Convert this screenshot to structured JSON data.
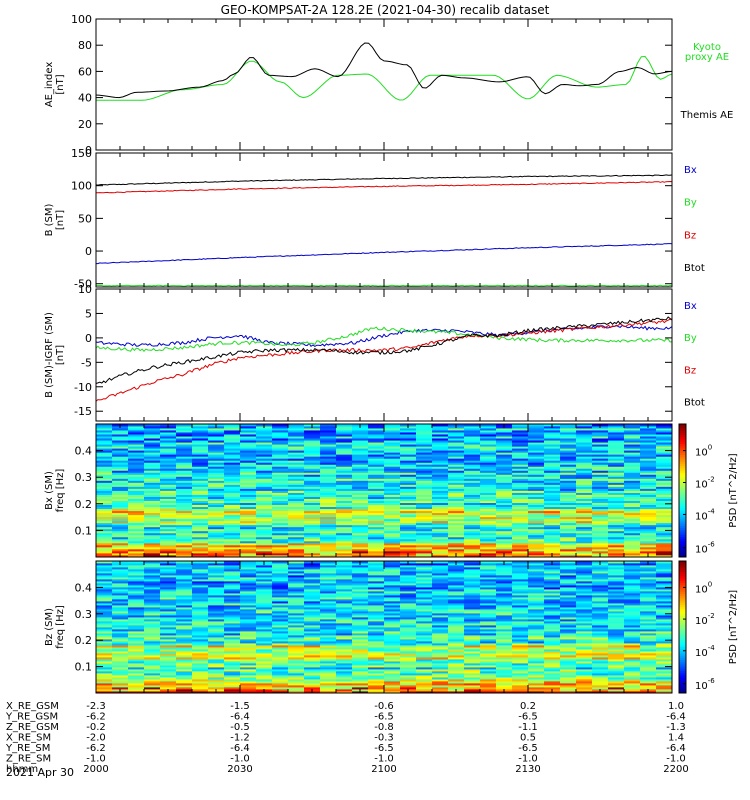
{
  "title": "GEO-KOMPSAT-2A 128.2E (2021-04-30) recalib dataset",
  "colors": {
    "black": "#000000",
    "red": "#e00000",
    "green": "#22dd22",
    "blue": "#0000cc"
  },
  "chart_data": [
    {
      "type": "line",
      "panel": "ae",
      "ylabel": [
        "AE_index",
        "[nT]"
      ],
      "ylim": [
        0,
        100
      ],
      "yticks": [
        0,
        20,
        40,
        60,
        80,
        100
      ],
      "legend": [
        {
          "lines": [
            "Kyoto",
            "proxy AE"
          ],
          "color": "#22dd22"
        },
        {
          "lines": [
            "Themis AE"
          ],
          "color": "#000000"
        }
      ],
      "series": [
        {
          "name": "Kyoto proxy AE",
          "color": "#22dd22",
          "x": [
            0,
            0.08,
            0.15,
            0.22,
            0.27,
            0.32,
            0.36,
            0.42,
            0.47,
            0.53,
            0.58,
            0.63,
            0.69,
            0.75,
            0.8,
            0.87,
            0.92,
            0.95,
            0.98,
            1.0
          ],
          "values": [
            38,
            38,
            46,
            50,
            68,
            52,
            40,
            57,
            58,
            38,
            57,
            57,
            57,
            39,
            57,
            48,
            50,
            72,
            54,
            58
          ]
        },
        {
          "name": "Themis AE",
          "color": "#000000",
          "x": [
            0,
            0.04,
            0.07,
            0.12,
            0.18,
            0.22,
            0.24,
            0.27,
            0.3,
            0.34,
            0.38,
            0.42,
            0.47,
            0.5,
            0.54,
            0.57,
            0.6,
            0.64,
            0.7,
            0.75,
            0.78,
            0.81,
            0.84,
            0.87,
            0.91,
            0.94,
            0.97,
            1.0
          ],
          "values": [
            42,
            40,
            44,
            45,
            48,
            53,
            58,
            71,
            57,
            56,
            62,
            56,
            82,
            68,
            65,
            47,
            57,
            55,
            52,
            56,
            43,
            50,
            49,
            50,
            60,
            63,
            58,
            60
          ]
        }
      ]
    },
    {
      "type": "line",
      "panel": "b_sm",
      "ylabel": [
        "B (SM)",
        "[nT]"
      ],
      "ylim": [
        -55,
        150
      ],
      "yticks": [
        -50,
        0,
        50,
        100,
        150
      ],
      "legend": [
        {
          "lines": [
            "Bx"
          ],
          "color": "#0000cc"
        },
        {
          "lines": [
            "By"
          ],
          "color": "#22dd22"
        },
        {
          "lines": [
            "Bz"
          ],
          "color": "#e00000"
        },
        {
          "lines": [
            "Btot"
          ],
          "color": "#000000"
        }
      ],
      "series": [
        {
          "name": "Btot",
          "color": "#000000",
          "x": [
            0,
            0.25,
            0.5,
            0.75,
            1.0
          ],
          "values": [
            101,
            107,
            111,
            114,
            116
          ]
        },
        {
          "name": "Bz",
          "color": "#e00000",
          "x": [
            0,
            0.25,
            0.5,
            0.75,
            1.0
          ],
          "values": [
            89,
            95,
            99,
            102,
            106
          ]
        },
        {
          "name": "Bx",
          "color": "#0000cc",
          "x": [
            0,
            0.25,
            0.5,
            0.75,
            1.0
          ],
          "values": [
            -19,
            -10,
            -2,
            5,
            11
          ]
        },
        {
          "name": "By",
          "color": "#22dd22",
          "x": [
            0,
            0.25,
            0.5,
            0.75,
            1.0
          ],
          "values": [
            -53,
            -53,
            -53,
            -53,
            -53
          ]
        }
      ]
    },
    {
      "type": "line",
      "panel": "db_sm",
      "ylabel": [
        "B (SM)-IGRF (SM)",
        "[nT]"
      ],
      "ylim": [
        -17,
        10
      ],
      "yticks": [
        -15,
        -10,
        -5,
        0,
        5,
        10
      ],
      "legend": [
        {
          "lines": [
            "Bx"
          ],
          "color": "#0000cc"
        },
        {
          "lines": [
            "By"
          ],
          "color": "#22dd22"
        },
        {
          "lines": [
            "Bz"
          ],
          "color": "#e00000"
        },
        {
          "lines": [
            "Btot"
          ],
          "color": "#000000"
        }
      ],
      "series": [
        {
          "name": "Bx",
          "color": "#0000cc",
          "x": [
            0,
            0.08,
            0.15,
            0.2,
            0.25,
            0.3,
            0.38,
            0.45,
            0.5,
            0.55,
            0.62,
            0.7,
            0.78,
            0.85,
            0.9,
            0.95,
            1.0
          ],
          "values": [
            -1,
            -1.5,
            -1,
            0,
            0.5,
            -1,
            -1.5,
            -1,
            0.5,
            1.5,
            1.5,
            0.5,
            1.5,
            2,
            2.5,
            2,
            2
          ]
        },
        {
          "name": "By",
          "color": "#22dd22",
          "x": [
            0,
            0.08,
            0.15,
            0.22,
            0.28,
            0.33,
            0.38,
            0.44,
            0.48,
            0.55,
            0.62,
            0.7,
            0.78,
            0.85,
            0.92,
            1.0
          ],
          "values": [
            -2,
            -2.5,
            -2,
            -1,
            -1,
            -1.5,
            -1,
            0.5,
            2,
            1.5,
            1,
            0,
            -0.5,
            -0.5,
            -0.5,
            -0.5
          ]
        },
        {
          "name": "Bz",
          "color": "#e00000",
          "x": [
            0,
            0.05,
            0.1,
            0.15,
            0.2,
            0.25,
            0.3,
            0.35,
            0.4,
            0.45,
            0.5,
            0.55,
            0.6,
            0.65,
            0.7,
            0.75,
            0.8,
            0.85,
            0.9,
            0.95,
            1.0
          ],
          "values": [
            -13,
            -11,
            -9,
            -7.5,
            -5.5,
            -4,
            -3.5,
            -3,
            -2.5,
            -2.5,
            -2.5,
            -2,
            -0.5,
            0.5,
            0.5,
            1,
            1.5,
            2,
            2.5,
            3,
            3.5
          ]
        },
        {
          "name": "Btot",
          "color": "#000000",
          "x": [
            0,
            0.05,
            0.1,
            0.15,
            0.2,
            0.25,
            0.3,
            0.35,
            0.4,
            0.45,
            0.5,
            0.55,
            0.6,
            0.65,
            0.7,
            0.75,
            0.8,
            0.85,
            0.9,
            0.95,
            1.0
          ],
          "values": [
            -9.5,
            -7.5,
            -6,
            -5,
            -4,
            -3,
            -2.5,
            -2.5,
            -2.5,
            -3,
            -3,
            -2.5,
            -1,
            0.5,
            0.5,
            1.5,
            2,
            2.5,
            3,
            3.5,
            4
          ]
        }
      ]
    },
    {
      "type": "heatmap",
      "panel": "bx_spec",
      "ylabel": [
        "Bx (SM)",
        "freq [Hz]"
      ],
      "ylim": [
        0,
        0.5
      ],
      "yticks": [
        0.1,
        0.2,
        0.3,
        0.4
      ],
      "colorbar": {
        "label": "PSD [nT^2/Hz]",
        "ticks": [
          {
            "base": "10",
            "exp": "0",
            "frac": 0.2
          },
          {
            "base": "10",
            "exp": "-2",
            "frac": 0.44
          },
          {
            "base": "10",
            "exp": "-4",
            "frac": 0.68
          },
          {
            "base": "10",
            "exp": "-6",
            "frac": 0.93
          }
        ]
      }
    },
    {
      "type": "heatmap",
      "panel": "bz_spec",
      "ylabel": [
        "Bz (SM)",
        "freq [Hz]"
      ],
      "ylim": [
        0,
        0.5
      ],
      "yticks": [
        0.1,
        0.2,
        0.3,
        0.4
      ],
      "colorbar": {
        "label": "PSD [nT^2/Hz]",
        "ticks": [
          {
            "base": "10",
            "exp": "0",
            "frac": 0.2
          },
          {
            "base": "10",
            "exp": "-2",
            "frac": 0.44
          },
          {
            "base": "10",
            "exp": "-4",
            "frac": 0.68
          },
          {
            "base": "10",
            "exp": "-6",
            "frac": 0.93
          }
        ]
      }
    }
  ],
  "ephemeris": {
    "rows": [
      {
        "label": "X_RE_GSM",
        "values": [
          "-2.3",
          "-1.5",
          "-0.6",
          "0.2",
          "1.0"
        ]
      },
      {
        "label": "Y_RE_GSM",
        "values": [
          "-6.2",
          "-6.4",
          "-6.5",
          "-6.5",
          "-6.4"
        ]
      },
      {
        "label": "Z_RE_GSM",
        "values": [
          "-0.2",
          "-0.5",
          "-0.8",
          "-1.1",
          "-1.3"
        ]
      },
      {
        "label": "X_RE_SM",
        "values": [
          "-2.0",
          "-1.2",
          "-0.3",
          "0.5",
          "1.4"
        ]
      },
      {
        "label": "Y_RE_SM",
        "values": [
          "-6.2",
          "-6.4",
          "-6.5",
          "-6.5",
          "-6.4"
        ]
      },
      {
        "label": "Z_RE_SM",
        "values": [
          "-1.0",
          "-1.0",
          "-1.0",
          "-1.0",
          "-1.0"
        ]
      },
      {
        "label": "hhmm",
        "values": [
          "2000",
          "2030",
          "2100",
          "2130",
          "2200"
        ]
      }
    ],
    "date": "2021 Apr 30"
  }
}
